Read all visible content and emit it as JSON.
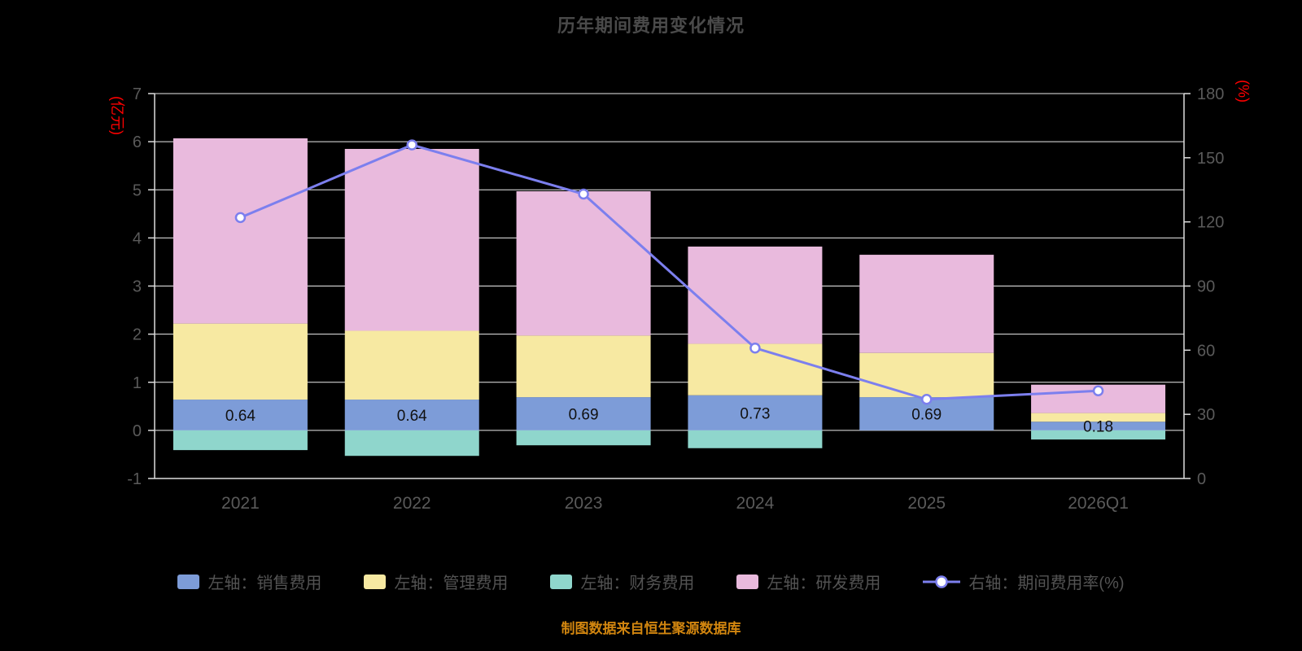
{
  "title": "历年期间费用变化情况",
  "source_note": "制图数据来自恒生聚源数据库",
  "chart_data": {
    "type": "bar",
    "stacked": true,
    "overlay": "line",
    "grid": true,
    "legend_position": "bottom",
    "categories": [
      "2021",
      "2022",
      "2023",
      "2024",
      "2025",
      "2026Q1"
    ],
    "bar_series": [
      {
        "name": "左轴：销售费用",
        "color": "#7d9cd8",
        "values": [
          0.64,
          0.64,
          0.69,
          0.73,
          0.69,
          0.18
        ]
      },
      {
        "name": "左轴：管理费用",
        "color": "#f7e9a2",
        "values": [
          1.58,
          1.43,
          1.28,
          1.07,
          0.92,
          0.18
        ]
      },
      {
        "name": "左轴：财务费用",
        "color": "#8fd6cc",
        "values": [
          -0.41,
          -0.53,
          -0.31,
          -0.37,
          0,
          -0.19
        ]
      },
      {
        "name": "左轴：研发费用",
        "color": "#e9badd",
        "values": [
          3.85,
          3.78,
          3.0,
          2.02,
          2.04,
          0.59
        ]
      }
    ],
    "line_series": {
      "name": "右轴：期间费用率(%)",
      "color": "#7c7fee",
      "values": [
        122,
        156,
        133,
        61,
        37,
        41
      ]
    },
    "bar_labels": {
      "series": "左轴：销售费用",
      "values": [
        "0.64",
        "0.64",
        "0.69",
        "0.73",
        "0.69",
        "0.18"
      ]
    },
    "left_axis": {
      "unit": "(亿元)",
      "min": -1,
      "max": 7,
      "step": 1,
      "unit_color": "#ff0000"
    },
    "right_axis": {
      "unit": "(%)",
      "min": 0,
      "max": 180,
      "step": 30,
      "unit_color": "#ff0000"
    }
  },
  "style": {
    "grid_color": "#ededed",
    "spine_color": "#dddddd",
    "tick_label_color": "#5a5a5a",
    "bar_label_color": "#111111"
  }
}
